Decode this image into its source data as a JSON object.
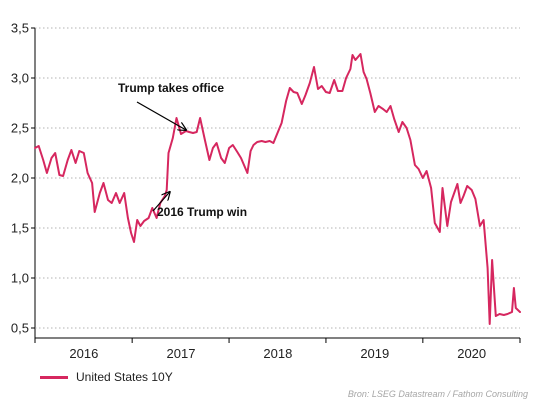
{
  "chart_data": {
    "type": "line",
    "ylim": [
      0.4,
      3.5
    ],
    "xlim": [
      "2015-07-01",
      "2020-07-01"
    ],
    "y_ticks": [
      0.5,
      1.0,
      1.5,
      2.0,
      2.5,
      3.0,
      3.5
    ],
    "y_tick_labels": [
      "0,5",
      "1,0",
      "1,5",
      "2,0",
      "2,5",
      "3,0",
      "3,5"
    ],
    "x_tick_labels": [
      "2016",
      "2017",
      "2018",
      "2019",
      "2020"
    ],
    "x_tick_dates": [
      "2016-01-01",
      "2017-01-01",
      "2018-01-01",
      "2019-01-01",
      "2020-01-01"
    ],
    "x_boundaries": [
      "2015-07-01",
      "2016-07-01",
      "2017-07-01",
      "2018-07-01",
      "2019-07-01",
      "2020-07-01"
    ],
    "grid": true,
    "legend_position": "bottom-left",
    "series": [
      {
        "name": "United States 10Y",
        "color": "#d6275f",
        "points": [
          [
            "2015-07-01",
            2.3
          ],
          [
            "2015-07-15",
            2.32
          ],
          [
            "2015-08-01",
            2.18
          ],
          [
            "2015-08-15",
            2.05
          ],
          [
            "2015-09-01",
            2.2
          ],
          [
            "2015-09-15",
            2.25
          ],
          [
            "2015-10-01",
            2.03
          ],
          [
            "2015-10-15",
            2.02
          ],
          [
            "2015-11-01",
            2.18
          ],
          [
            "2015-11-15",
            2.28
          ],
          [
            "2015-12-01",
            2.15
          ],
          [
            "2015-12-15",
            2.27
          ],
          [
            "2016-01-01",
            2.25
          ],
          [
            "2016-01-15",
            2.05
          ],
          [
            "2016-02-01",
            1.95
          ],
          [
            "2016-02-11",
            1.66
          ],
          [
            "2016-03-01",
            1.85
          ],
          [
            "2016-03-15",
            1.95
          ],
          [
            "2016-04-01",
            1.78
          ],
          [
            "2016-04-15",
            1.75
          ],
          [
            "2016-05-01",
            1.85
          ],
          [
            "2016-05-15",
            1.75
          ],
          [
            "2016-06-01",
            1.85
          ],
          [
            "2016-06-15",
            1.6
          ],
          [
            "2016-06-27",
            1.45
          ],
          [
            "2016-07-08",
            1.36
          ],
          [
            "2016-07-20",
            1.58
          ],
          [
            "2016-08-01",
            1.52
          ],
          [
            "2016-08-15",
            1.57
          ],
          [
            "2016-09-01",
            1.6
          ],
          [
            "2016-09-15",
            1.7
          ],
          [
            "2016-10-01",
            1.6
          ],
          [
            "2016-10-15",
            1.75
          ],
          [
            "2016-11-01",
            1.82
          ],
          [
            "2016-11-08",
            1.88
          ],
          [
            "2016-11-15",
            2.25
          ],
          [
            "2016-12-01",
            2.4
          ],
          [
            "2016-12-15",
            2.6
          ],
          [
            "2017-01-01",
            2.44
          ],
          [
            "2017-01-20",
            2.47
          ],
          [
            "2017-02-01",
            2.46
          ],
          [
            "2017-02-15",
            2.45
          ],
          [
            "2017-03-01",
            2.46
          ],
          [
            "2017-03-14",
            2.6
          ],
          [
            "2017-04-01",
            2.38
          ],
          [
            "2017-04-18",
            2.18
          ],
          [
            "2017-05-01",
            2.3
          ],
          [
            "2017-05-15",
            2.35
          ],
          [
            "2017-06-01",
            2.2
          ],
          [
            "2017-06-15",
            2.15
          ],
          [
            "2017-07-01",
            2.3
          ],
          [
            "2017-07-15",
            2.33
          ],
          [
            "2017-08-01",
            2.26
          ],
          [
            "2017-08-15",
            2.2
          ],
          [
            "2017-09-08",
            2.05
          ],
          [
            "2017-09-20",
            2.27
          ],
          [
            "2017-10-01",
            2.33
          ],
          [
            "2017-10-15",
            2.36
          ],
          [
            "2017-11-01",
            2.37
          ],
          [
            "2017-11-15",
            2.36
          ],
          [
            "2017-12-01",
            2.37
          ],
          [
            "2017-12-15",
            2.35
          ],
          [
            "2018-01-01",
            2.46
          ],
          [
            "2018-01-15",
            2.55
          ],
          [
            "2018-02-01",
            2.77
          ],
          [
            "2018-02-15",
            2.9
          ],
          [
            "2018-03-01",
            2.86
          ],
          [
            "2018-03-15",
            2.85
          ],
          [
            "2018-04-01",
            2.74
          ],
          [
            "2018-04-15",
            2.83
          ],
          [
            "2018-05-01",
            2.95
          ],
          [
            "2018-05-17",
            3.11
          ],
          [
            "2018-06-01",
            2.89
          ],
          [
            "2018-06-15",
            2.92
          ],
          [
            "2018-07-01",
            2.86
          ],
          [
            "2018-07-15",
            2.85
          ],
          [
            "2018-08-01",
            2.98
          ],
          [
            "2018-08-15",
            2.87
          ],
          [
            "2018-09-01",
            2.87
          ],
          [
            "2018-09-15",
            3.0
          ],
          [
            "2018-10-01",
            3.09
          ],
          [
            "2018-10-09",
            3.23
          ],
          [
            "2018-10-20",
            3.18
          ],
          [
            "2018-11-08",
            3.24
          ],
          [
            "2018-11-20",
            3.06
          ],
          [
            "2018-12-01",
            2.99
          ],
          [
            "2018-12-15",
            2.85
          ],
          [
            "2019-01-01",
            2.66
          ],
          [
            "2019-01-15",
            2.72
          ],
          [
            "2019-02-01",
            2.69
          ],
          [
            "2019-02-15",
            2.66
          ],
          [
            "2019-03-01",
            2.72
          ],
          [
            "2019-03-15",
            2.59
          ],
          [
            "2019-04-01",
            2.46
          ],
          [
            "2019-04-15",
            2.56
          ],
          [
            "2019-05-01",
            2.5
          ],
          [
            "2019-05-15",
            2.38
          ],
          [
            "2019-06-01",
            2.13
          ],
          [
            "2019-06-15",
            2.09
          ],
          [
            "2019-07-01",
            2.0
          ],
          [
            "2019-07-15",
            2.07
          ],
          [
            "2019-08-01",
            1.9
          ],
          [
            "2019-08-15",
            1.55
          ],
          [
            "2019-09-03",
            1.46
          ],
          [
            "2019-09-13",
            1.9
          ],
          [
            "2019-10-01",
            1.52
          ],
          [
            "2019-10-15",
            1.76
          ],
          [
            "2019-11-08",
            1.94
          ],
          [
            "2019-11-20",
            1.75
          ],
          [
            "2019-12-01",
            1.82
          ],
          [
            "2019-12-15",
            1.92
          ],
          [
            "2020-01-01",
            1.88
          ],
          [
            "2020-01-15",
            1.79
          ],
          [
            "2020-02-01",
            1.52
          ],
          [
            "2020-02-15",
            1.58
          ],
          [
            "2020-03-01",
            1.1
          ],
          [
            "2020-03-09",
            0.54
          ],
          [
            "2020-03-18",
            1.18
          ],
          [
            "2020-04-01",
            0.62
          ],
          [
            "2020-04-15",
            0.64
          ],
          [
            "2020-05-01",
            0.63
          ],
          [
            "2020-05-15",
            0.64
          ],
          [
            "2020-06-01",
            0.66
          ],
          [
            "2020-06-08",
            0.9
          ],
          [
            "2020-06-15",
            0.7
          ],
          [
            "2020-07-01",
            0.66
          ]
        ]
      }
    ],
    "annotations": [
      {
        "text": "Trump takes office",
        "date": "2017-01-20",
        "value": 2.44
      },
      {
        "text": "2016 Trump win",
        "date": "2016-11-08",
        "value": 1.88
      }
    ],
    "legend": {
      "label": "United States 10Y"
    },
    "source": "Bron: LSEG Datastream / Fathom Consulting"
  }
}
